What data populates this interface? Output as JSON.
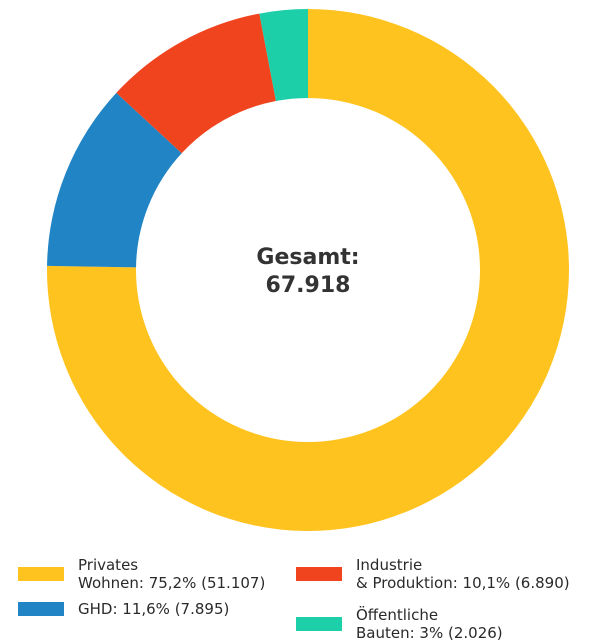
{
  "chart_data": {
    "type": "pie",
    "donut": true,
    "center_text": [
      "Gesamt:",
      "67.918"
    ],
    "total": 67918,
    "slices": [
      {
        "key": "privates",
        "value": 51107,
        "color": "#FFC31F"
      },
      {
        "key": "ghd",
        "value": 7895,
        "color": "#2185C5"
      },
      {
        "key": "industrie",
        "value": 6890,
        "color": "#F0441E"
      },
      {
        "key": "oeffentlich",
        "value": 2026,
        "color": "#1DCFA8"
      }
    ],
    "legend": [
      {
        "key": "privates",
        "label": "Privates\nWohnen: 75,2% (51.107)",
        "color": "#FFC31F"
      },
      {
        "key": "ghd",
        "label": "GHD: 11,6% (7.895)",
        "color": "#2185C5"
      },
      {
        "key": "industrie",
        "label": "Industrie\n& Produktion: 10,1% (6.890)",
        "color": "#F0441E"
      },
      {
        "key": "oeffentlich",
        "label": "Öffentliche\nBauten: 3% (2.026)",
        "color": "#1DCFA8"
      }
    ],
    "legend_position": "bottom"
  }
}
